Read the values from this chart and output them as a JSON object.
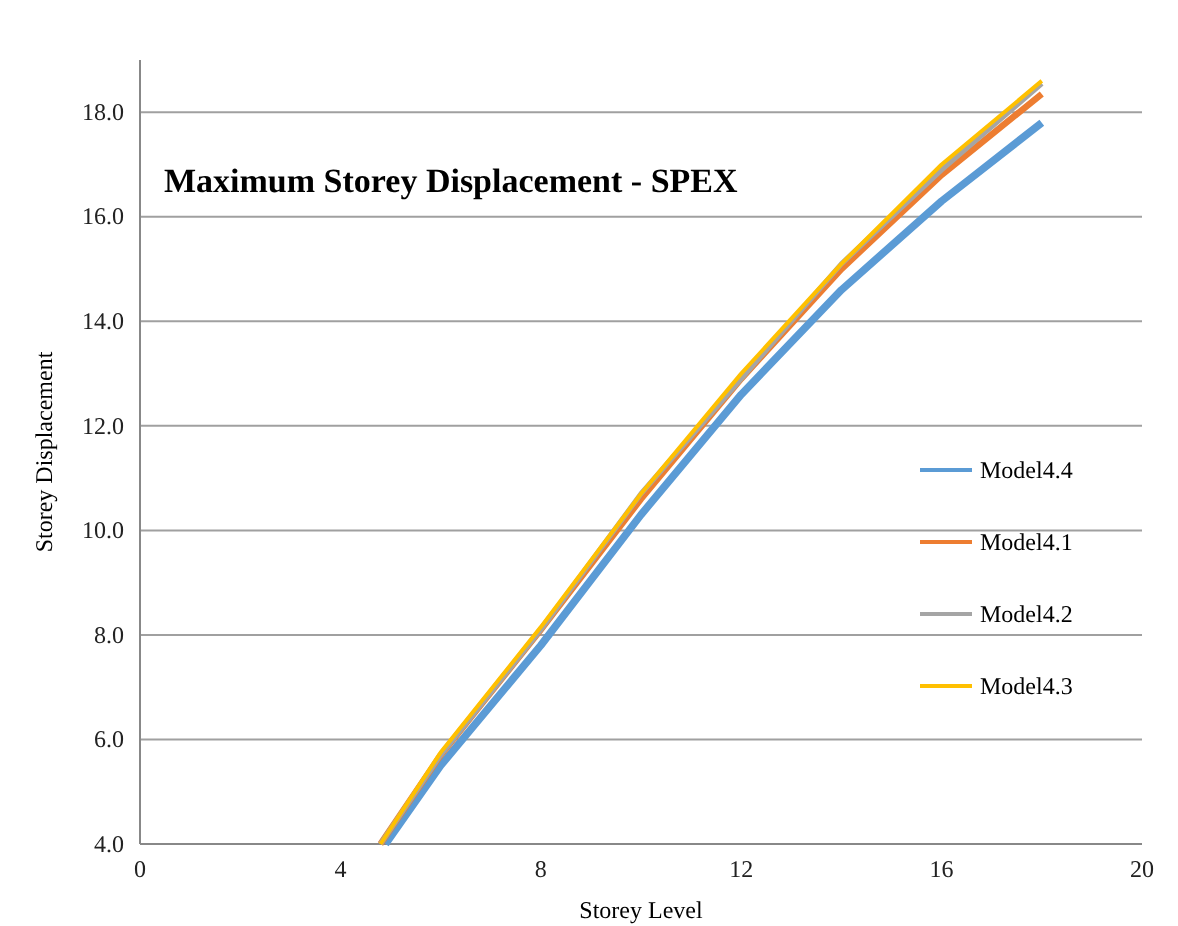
{
  "chart_data": {
    "type": "line",
    "title": "Maximum Storey Displacement  - SPEX",
    "xlabel": "Storey Level",
    "ylabel": "Storey Displacement",
    "xlim": [
      0,
      20
    ],
    "xticks": [
      0,
      4,
      8,
      12,
      16,
      20
    ],
    "ylim": [
      4,
      19
    ],
    "yticks": [
      {
        "value": 4,
        "label": "4.0"
      },
      {
        "value": 6,
        "label": "6.0"
      },
      {
        "value": 8,
        "label": "8.0"
      },
      {
        "value": 10,
        "label": "10.0"
      },
      {
        "value": 12,
        "label": "12.0"
      },
      {
        "value": 14,
        "label": "14.0"
      },
      {
        "value": 16,
        "label": "16.0"
      },
      {
        "value": 18,
        "label": "18.0"
      }
    ],
    "grid": "y",
    "legend": "right",
    "marker": "none",
    "line_style": "solid",
    "series": [
      {
        "name": "Model4.4",
        "color": "#5b9bd5",
        "x": [
          4.9,
          6,
          8,
          10,
          12,
          14,
          16,
          18
        ],
        "values": [
          4.0,
          5.5,
          7.8,
          10.3,
          12.6,
          14.6,
          16.3,
          17.8
        ]
      },
      {
        "name": "Model4.1",
        "color": "#ed7d31",
        "x": [
          4.8,
          6,
          8,
          10,
          12,
          14,
          16,
          18
        ],
        "values": [
          4.0,
          5.7,
          8.1,
          10.6,
          12.9,
          15.0,
          16.8,
          18.35
        ]
      },
      {
        "name": "Model4.2",
        "color": "#a5a5a5",
        "x": [
          4.8,
          6,
          8,
          10,
          12,
          14,
          16,
          18
        ],
        "values": [
          4.0,
          5.7,
          8.1,
          10.7,
          12.9,
          15.1,
          16.9,
          18.55
        ]
      },
      {
        "name": "Model4.3",
        "color": "#ffc000",
        "x": [
          4.8,
          6,
          8,
          10,
          12,
          14,
          16,
          18
        ],
        "values": [
          4.0,
          5.75,
          8.15,
          10.7,
          13.0,
          15.1,
          17.0,
          18.6
        ]
      }
    ]
  }
}
